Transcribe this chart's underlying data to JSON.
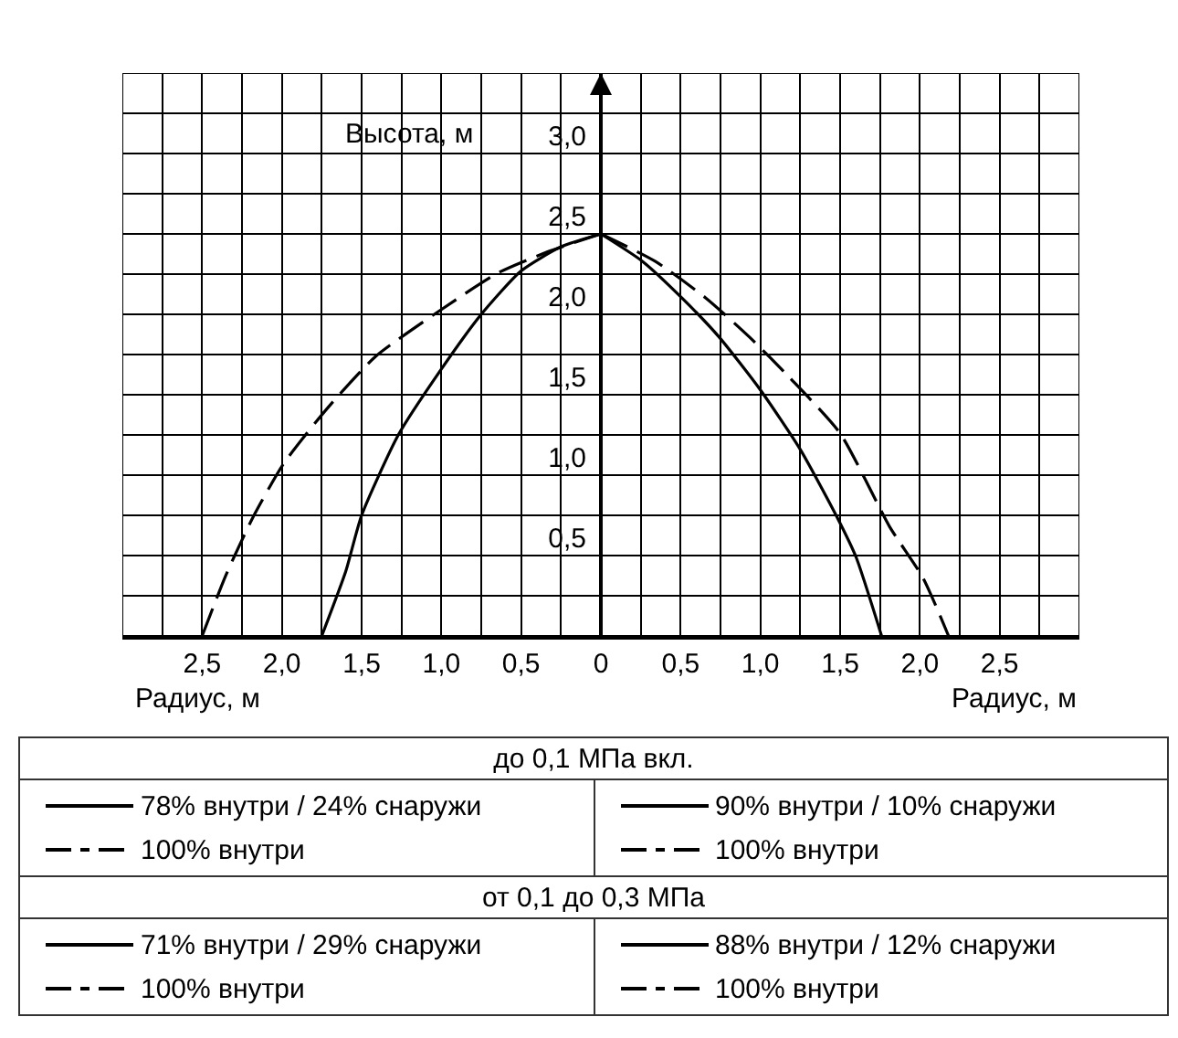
{
  "chart_data": {
    "type": "line",
    "xlabel": "Радиус, м",
    "ylabel": "Высота, м",
    "xlim": [
      -3,
      3
    ],
    "ylim": [
      0,
      3.5
    ],
    "xticks": [
      {
        "value": -3,
        "label": null
      },
      {
        "value": -2.75,
        "label": null
      },
      {
        "value": -2.5,
        "label": "2,5"
      },
      {
        "value": -2.25,
        "label": null
      },
      {
        "value": -2,
        "label": "2,0"
      },
      {
        "value": -1.75,
        "label": null
      },
      {
        "value": -1.5,
        "label": "1,5"
      },
      {
        "value": -1.25,
        "label": null
      },
      {
        "value": -1,
        "label": "1,0"
      },
      {
        "value": -0.75,
        "label": null
      },
      {
        "value": -0.5,
        "label": "0,5"
      },
      {
        "value": -0.25,
        "label": null
      },
      0,
      {
        "value": 0.25,
        "label": null
      },
      {
        "value": 0.5,
        "label": "0,5"
      },
      {
        "value": 0.75,
        "label": null
      },
      {
        "value": 1,
        "label": "1,0"
      },
      {
        "value": 1.25,
        "label": null
      },
      {
        "value": 1.5,
        "label": "1,5"
      },
      {
        "value": 1.75,
        "label": null
      },
      {
        "value": 2,
        "label": "2,0"
      },
      {
        "value": 2.25,
        "label": null
      },
      {
        "value": 2.5,
        "label": "2,5"
      },
      {
        "value": 2.75,
        "label": null
      },
      {
        "value": 3,
        "label": null
      }
    ],
    "yticks": [
      {
        "value": 0,
        "label": null
      },
      {
        "value": 0.25,
        "label": null
      },
      {
        "value": 0.5,
        "label": "0,5"
      },
      {
        "value": 0.75,
        "label": null
      },
      {
        "value": 1,
        "label": "1,0"
      },
      {
        "value": 1.25,
        "label": null
      },
      {
        "value": 1.5,
        "label": "1,5"
      },
      {
        "value": 1.75,
        "label": null
      },
      {
        "value": 2,
        "label": "2,0"
      },
      {
        "value": 2.25,
        "label": null
      },
      {
        "value": 2.5,
        "label": "2,5"
      },
      {
        "value": 2.75,
        "label": null
      },
      {
        "value": 3,
        "label": "3,0"
      },
      {
        "value": 3.25,
        "label": null
      },
      {
        "value": 3.5,
        "label": null
      }
    ],
    "grid": true,
    "marker": "none",
    "series": [
      {
        "color": "#000000",
        "line_style": "solid",
        "x": [
          -1.75,
          -1.6,
          -1.5,
          -1.27,
          -1.0,
          -0.75,
          -0.5,
          -0.25,
          0
        ],
        "values": [
          0,
          0.4,
          0.75,
          1.25,
          1.66,
          2.0,
          2.27,
          2.42,
          2.5
        ]
      },
      {
        "color": "#000000",
        "line_style": "dashed",
        "x": [
          -2.5,
          -2.35,
          -2.18,
          -1.99,
          -1.72,
          -1.41,
          -1.0,
          -0.64,
          -0.33,
          0
        ],
        "values": [
          0,
          0.38,
          0.74,
          1.07,
          1.41,
          1.74,
          2.03,
          2.26,
          2.39,
          2.5
        ]
      },
      {
        "color": "#000000",
        "line_style": "solid",
        "x": [
          0,
          0.26,
          0.51,
          0.74,
          1.0,
          1.25,
          1.48,
          1.6,
          1.76
        ],
        "values": [
          2.5,
          2.33,
          2.1,
          1.86,
          1.53,
          1.16,
          0.74,
          0.49,
          0
        ]
      },
      {
        "color": "#000000",
        "line_style": "dashed",
        "x": [
          0,
          0.34,
          0.66,
          0.93,
          1.18,
          1.5,
          1.81,
          2.02,
          2.18
        ],
        "values": [
          2.5,
          2.33,
          2.1,
          1.86,
          1.61,
          1.26,
          0.68,
          0.36,
          0
        ]
      }
    ],
    "annotations": [
      "до 0,1 МПа вкл.",
      "78% внутри / 24% снаружи",
      "100% внутри",
      "90% внутри / 10% снаружи",
      "100% внутри",
      "от 0,1 до 0,3 МПа",
      "71% внутри / 29% снаружи",
      "100% внутри",
      "88% внутри / 12% снаружи",
      "100% внутри"
    ]
  }
}
